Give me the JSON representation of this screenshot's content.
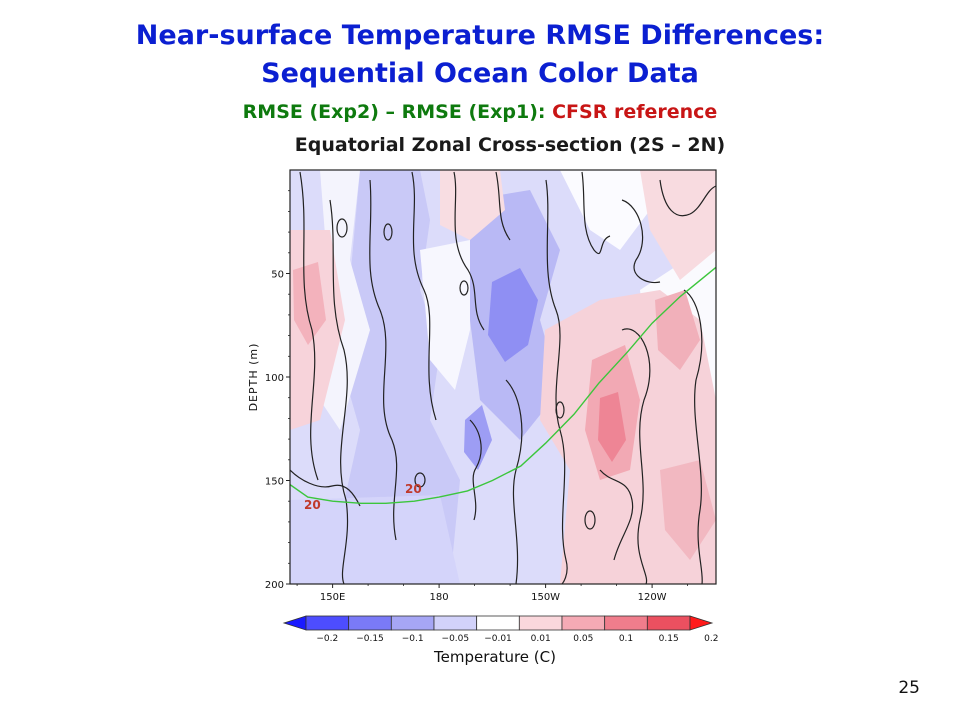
{
  "slide": {
    "title_line1": "Near-surface Temperature RMSE Differences:",
    "title_line2": "Sequential Ocean Color Data",
    "subtitle_green": "RMSE (Exp2) – RMSE (Exp1):",
    "subtitle_red": "CFSR reference",
    "section_title": "Equatorial Zonal Cross-section (2S – 2N)",
    "slide_number": "25"
  },
  "colors": {
    "title": "#0b1fd1",
    "subtitle_green": "#0e7a0e",
    "subtitle_red": "#c81515",
    "isotherm": "#3cc63c"
  },
  "chart_data": {
    "type": "heatmap",
    "ylabel": "DEPTH (m)",
    "ylim": [
      200,
      0
    ],
    "y_ticks": [
      50,
      100,
      150,
      200
    ],
    "x_ticks": [
      "150E",
      "180",
      "150W",
      "120W"
    ],
    "x_tick_lon": [
      150,
      180,
      210,
      240
    ],
    "xlim_lon": [
      138,
      258
    ],
    "colorbar_label": "Temperature (C)",
    "colorbar_levels": [
      "−0.2",
      "−0.15",
      "−0.1",
      "−0.05",
      "−0.01",
      "0.01",
      "0.05",
      "0.1",
      "0.15",
      "0.2"
    ],
    "colorbar_colors": [
      "#1a1aff",
      "#4d4dff",
      "#7a7af7",
      "#a6a6f5",
      "#d2d2fa",
      "#ffffff",
      "#fad7dc",
      "#f5aab5",
      "#f07d8c",
      "#eb5060",
      "#ff1a1a"
    ],
    "isotherm_20C": {
      "label": "20",
      "lon": [
        138,
        143,
        150,
        158,
        165,
        173,
        180,
        188,
        195,
        203,
        210,
        218,
        225,
        233,
        240,
        248,
        258
      ],
      "depth": [
        152,
        158,
        160,
        161,
        161,
        160,
        158,
        155,
        150,
        143,
        132,
        118,
        103,
        88,
        74,
        61,
        47
      ]
    }
  }
}
